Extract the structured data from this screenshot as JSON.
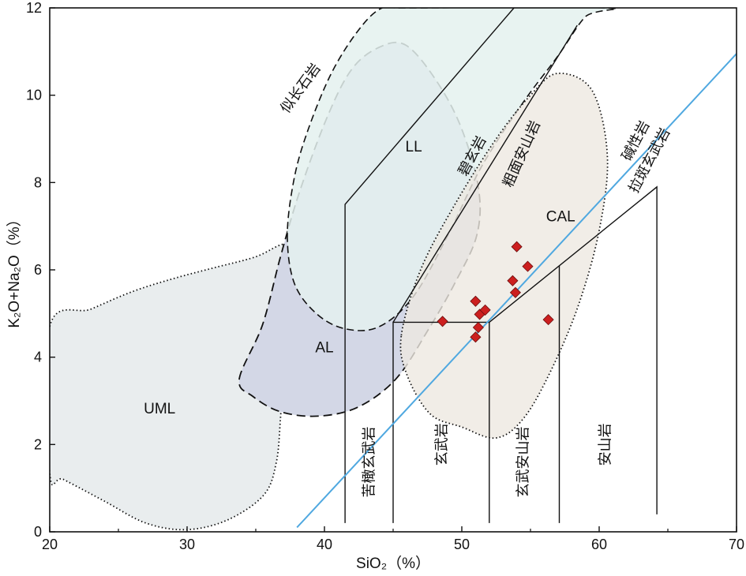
{
  "chart_data": {
    "type": "scatter",
    "title": "",
    "xlabel": "SiO₂（%）",
    "ylabel": "K₂O+Na₂O（%）",
    "xlim": [
      20,
      70
    ],
    "ylim": [
      0,
      12
    ],
    "xticks": [
      20,
      30,
      40,
      50,
      60,
      70
    ],
    "yticks": [
      0,
      2,
      4,
      6,
      8,
      10,
      12
    ],
    "grid": false,
    "colors": {
      "uml_fill": "#e9edee",
      "al_fill": "#d3d7e6",
      "ll_fill": "#e4f1ee",
      "cal_fill": "#ede9e1",
      "divider": "#4fa8e0",
      "marker": "#cc1f1f"
    },
    "fields": [
      {
        "name": "UML",
        "label_at": [
          28.0,
          2.8
        ],
        "outline": [
          [
            20,
            4.7
          ],
          [
            23,
            5.1
          ],
          [
            26,
            5.5
          ],
          [
            29,
            5.8
          ],
          [
            32,
            6.05
          ],
          [
            35,
            6.3
          ],
          [
            37.2,
            6.6
          ],
          [
            39,
            6.4
          ],
          [
            39.7,
            5.7
          ],
          [
            39,
            4.9
          ],
          [
            37.7,
            4.2
          ],
          [
            37.0,
            3.5
          ],
          [
            36.8,
            2.6
          ],
          [
            36.5,
            1.6
          ],
          [
            35.6,
            0.85
          ],
          [
            33,
            0.28
          ],
          [
            30,
            0.05
          ],
          [
            27,
            0.2
          ],
          [
            24,
            0.7
          ],
          [
            21,
            1.2
          ],
          [
            20,
            1.35
          ]
        ]
      },
      {
        "name": "AL",
        "label_at": [
          40.0,
          4.2
        ],
        "outline": [
          [
            33.8,
            3.5
          ],
          [
            35.5,
            4.75
          ],
          [
            36.8,
            6.3
          ],
          [
            38.2,
            7.8
          ],
          [
            40.2,
            9.5
          ],
          [
            42,
            10.6
          ],
          [
            44,
            11.1
          ],
          [
            45.9,
            11.15
          ],
          [
            48,
            10.4
          ],
          [
            49.9,
            9.3
          ],
          [
            51.2,
            7.9
          ],
          [
            51.1,
            6.8
          ],
          [
            49.5,
            5.7
          ],
          [
            47.5,
            4.6
          ],
          [
            45.2,
            3.5
          ],
          [
            42.4,
            2.85
          ],
          [
            39.5,
            2.65
          ],
          [
            36.8,
            2.75
          ],
          [
            34.8,
            3.1
          ]
        ]
      },
      {
        "name": "LL",
        "label_at": [
          46.5,
          8.8
        ],
        "outline": [
          [
            37.3,
            6.8
          ],
          [
            37.8,
            5.7
          ],
          [
            39.4,
            5.0
          ],
          [
            41.5,
            4.65
          ],
          [
            44.0,
            4.7
          ],
          [
            46.5,
            5.4
          ],
          [
            49.0,
            6.8
          ],
          [
            51.5,
            8.4
          ],
          [
            54.5,
            9.85
          ],
          [
            57.0,
            10.9
          ],
          [
            59.0,
            11.8
          ],
          [
            60.5,
            12.0
          ],
          [
            46.0,
            12.0
          ],
          [
            44.2,
            12.0
          ],
          [
            42.5,
            11.5
          ],
          [
            40.5,
            10.5
          ],
          [
            38.8,
            9.2
          ],
          [
            37.8,
            8.1
          ]
        ]
      },
      {
        "name": "CAL",
        "label_at": [
          57.2,
          7.2
        ],
        "outline": [
          [
            45.6,
            4.5
          ],
          [
            47.0,
            6.0
          ],
          [
            49.5,
            7.5
          ],
          [
            52.5,
            9.0
          ],
          [
            55.0,
            10.0
          ],
          [
            57.0,
            10.5
          ],
          [
            59.5,
            10.1
          ],
          [
            60.6,
            8.6
          ],
          [
            60.0,
            6.9
          ],
          [
            58.5,
            5.2
          ],
          [
            56.5,
            3.7
          ],
          [
            54.5,
            2.6
          ],
          [
            52.5,
            2.15
          ],
          [
            50.0,
            2.4
          ],
          [
            47.7,
            2.7
          ],
          [
            46.0,
            3.6
          ]
        ]
      }
    ],
    "boundaries": [
      [
        [
          41.5,
          0.2
        ],
        [
          41.5,
          7.5
        ],
        [
          53.8,
          12.0
        ]
      ],
      [
        [
          45.0,
          0.2
        ],
        [
          45.0,
          4.8
        ],
        [
          52.0,
          4.8
        ],
        [
          64.2,
          7.9
        ],
        [
          64.2,
          0.4
        ]
      ],
      [
        [
          45.0,
          4.8
        ],
        [
          58.4,
          11.6
        ]
      ],
      [
        [
          52.0,
          0.2
        ],
        [
          52.0,
          4.8
        ]
      ],
      [
        [
          57.1,
          0.2
        ],
        [
          57.1,
          6.1
        ]
      ]
    ],
    "alkaline_divider": [
      [
        38.0,
        0.1
      ],
      [
        70.0,
        10.95
      ]
    ],
    "rock_labels": [
      {
        "text": "似长石岩",
        "x": 38.3,
        "y": 10.15,
        "rotate": -54
      },
      {
        "text": "碧玄岩",
        "x": 50.8,
        "y": 8.6,
        "rotate": -62
      },
      {
        "text": "粗面安山岩",
        "x": 54.4,
        "y": 8.65,
        "rotate": -66
      },
      {
        "text": "碱性岩",
        "x": 62.7,
        "y": 8.95,
        "rotate": -62
      },
      {
        "text": "拉斑玄武岩",
        "x": 63.7,
        "y": 8.5,
        "rotate": -62
      },
      {
        "text": "苦橄玄武岩",
        "x": 43.3,
        "y": 1.6,
        "rotate": -90
      },
      {
        "text": "玄武岩",
        "x": 48.6,
        "y": 2.0,
        "rotate": -90
      },
      {
        "text": "玄武安山岩",
        "x": 54.5,
        "y": 1.6,
        "rotate": -90
      },
      {
        "text": "安山岩",
        "x": 60.5,
        "y": 2.0,
        "rotate": -90
      }
    ],
    "points": [
      {
        "x": 48.6,
        "y": 4.82
      },
      {
        "x": 51.0,
        "y": 5.28
      },
      {
        "x": 51.3,
        "y": 4.98
      },
      {
        "x": 51.7,
        "y": 5.08
      },
      {
        "x": 51.2,
        "y": 4.68
      },
      {
        "x": 51.0,
        "y": 4.46
      },
      {
        "x": 53.7,
        "y": 5.75
      },
      {
        "x": 53.9,
        "y": 5.48
      },
      {
        "x": 54.0,
        "y": 6.53
      },
      {
        "x": 54.8,
        "y": 6.08
      },
      {
        "x": 56.3,
        "y": 4.86
      }
    ]
  }
}
